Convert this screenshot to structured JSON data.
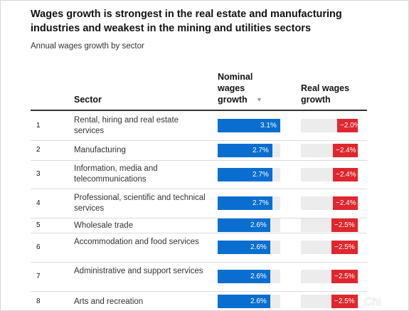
{
  "chart_data": {
    "type": "table",
    "title": "Wages growth is strongest in the real estate and manufacturing industries and weakest in the mining and utilities sectors",
    "subtitle": "Annual wages growth by sector",
    "columns": {
      "sector": "Sector",
      "nominal_lines": [
        "Nominal",
        "wages",
        "growth"
      ],
      "real_lines": [
        "Real wages",
        "growth"
      ]
    },
    "rows": [
      {
        "rank": "1",
        "sector": "Rental, hiring and real estate services",
        "nominal": 3.1,
        "nominal_label": "3.1%",
        "real": -2.0,
        "real_label": "−2.0%"
      },
      {
        "rank": "2",
        "sector": "Manufacturing",
        "nominal": 2.7,
        "nominal_label": "2.7%",
        "real": -2.4,
        "real_label": "−2.4%"
      },
      {
        "rank": "3",
        "sector": "Information, media and telecommunications",
        "nominal": 2.7,
        "nominal_label": "2.7%",
        "real": -2.4,
        "real_label": "−2.4%"
      },
      {
        "rank": "4",
        "sector": "Professional, scientific and technical services",
        "nominal": 2.7,
        "nominal_label": "2.7%",
        "real": -2.4,
        "real_label": "−2.4%"
      },
      {
        "rank": "5",
        "sector": "Wholesale trade",
        "nominal": 2.6,
        "nominal_label": "2.6%",
        "real": -2.5,
        "real_label": "−2.5%"
      },
      {
        "rank": "6",
        "sector": "Accommodation and food services",
        "nominal": 2.6,
        "nominal_label": "2.6%",
        "real": -2.5,
        "real_label": "−2.5%"
      },
      {
        "rank": "7",
        "sector": "Administrative and support services",
        "nominal": 2.6,
        "nominal_label": "2.6%",
        "real": -2.5,
        "real_label": "−2.5%"
      },
      {
        "rank": "8",
        "sector": "Arts and recreation",
        "nominal": 2.6,
        "nominal_label": "2.6%",
        "real": -2.5,
        "real_label": "−2.5%"
      }
    ],
    "sort": {
      "column": "nominal",
      "direction": "descending",
      "icon": "sort-descending-icon"
    },
    "colors": {
      "nominal": "#0a6ed1",
      "real": "#e0262e",
      "track": "#ececec"
    }
  },
  "watermark": "Chi"
}
